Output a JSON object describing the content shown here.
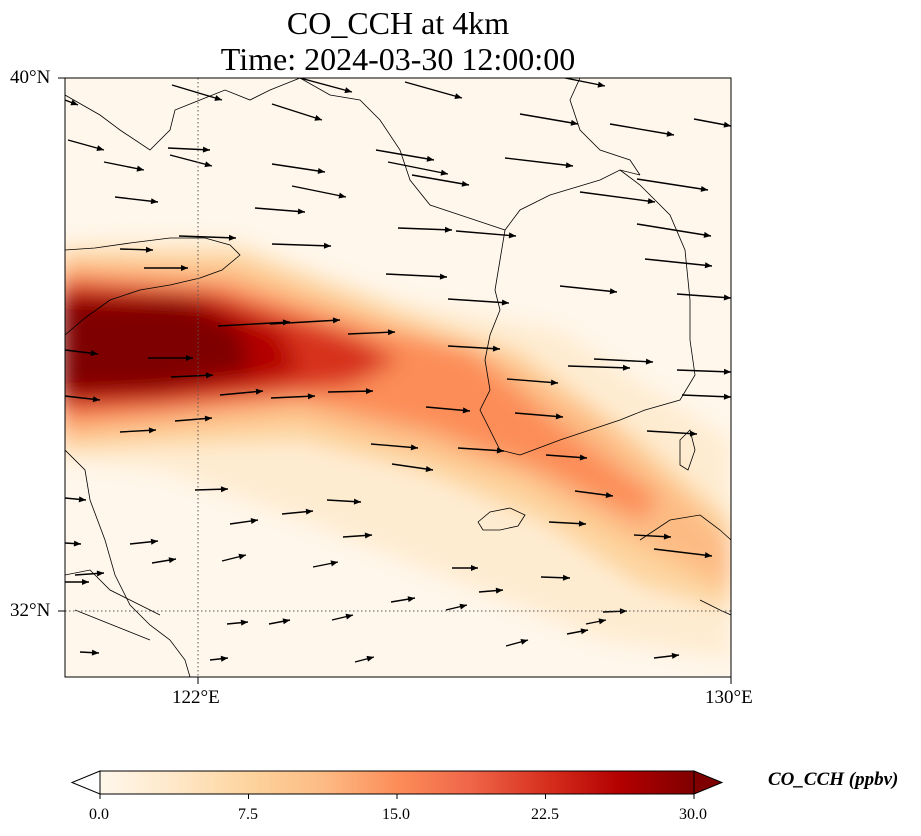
{
  "title": {
    "line1": "CO_CCH at 4km",
    "line2": "Time: 2024-03-30 12:00:00"
  },
  "axes": {
    "lat_ticks": [
      "40°N",
      "32°N"
    ],
    "lon_ticks": [
      "122°E",
      "130°E"
    ]
  },
  "colorbar": {
    "label": "CO_CCH (ppbv)",
    "ticks": [
      "0.0",
      "7.5",
      "15.0",
      "22.5",
      "30.0"
    ],
    "range": [
      0,
      30
    ],
    "extend": "both",
    "colormap": "OrRd",
    "colors": [
      "#fff7ec",
      "#fee8c8",
      "#fdd49e",
      "#fdbb84",
      "#fc8d59",
      "#ef6548",
      "#d7301f",
      "#b30000",
      "#7f0000"
    ]
  },
  "map": {
    "lon_range": [
      120,
      130
    ],
    "lat_range": [
      31,
      40
    ],
    "gridlines": {
      "lon": [
        122
      ],
      "lat": [
        32
      ],
      "style": "dotted"
    },
    "background_color": "#fff7ec",
    "coastline_color": "#000000",
    "wind_vector_color": "#000000"
  }
}
